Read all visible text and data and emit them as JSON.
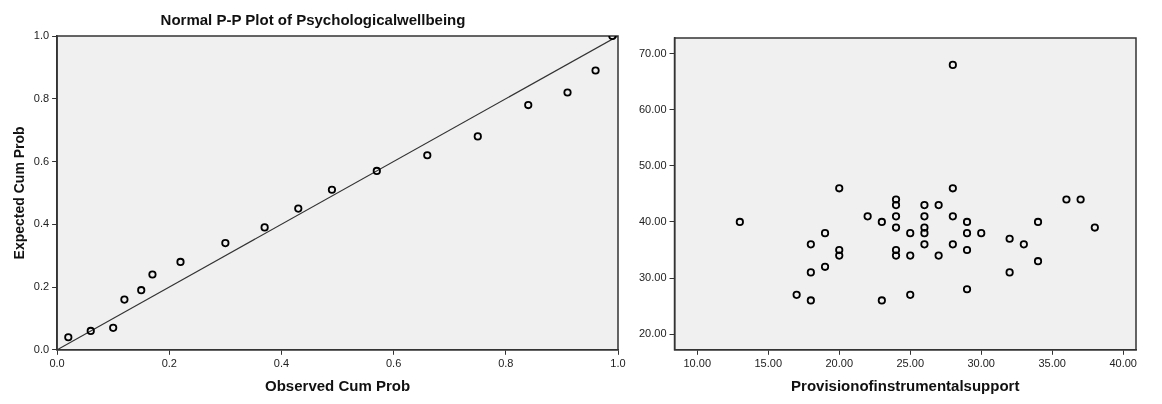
{
  "chart_data": [
    {
      "type": "scatter",
      "title": "Normal P-P Plot of Psychologicalwellbeing",
      "xlabel": "Observed Cum Prob",
      "ylabel": "Expected Cum Prob",
      "xlim": [
        0,
        1
      ],
      "ylim": [
        0,
        1
      ],
      "xticks": [
        {
          "value": 0,
          "label": "0.0"
        },
        {
          "value": 0.2,
          "label": "0.2"
        },
        {
          "value": 0.4,
          "label": "0.4"
        },
        {
          "value": 0.6,
          "label": "0.6"
        },
        {
          "value": 0.8,
          "label": "0.8"
        },
        {
          "value": 1,
          "label": "1.0"
        }
      ],
      "yticks": [
        {
          "value": 0,
          "label": "0.0"
        },
        {
          "value": 0.2,
          "label": "0.2"
        },
        {
          "value": 0.4,
          "label": "0.4"
        },
        {
          "value": 0.6,
          "label": "0.6"
        },
        {
          "value": 0.8,
          "label": "0.8"
        },
        {
          "value": 1,
          "label": "1.0"
        }
      ],
      "grid": false,
      "legend": false,
      "marker": "circle",
      "series": [
        {
          "type": "scatter",
          "color": "#000000",
          "x": [
            0.02,
            0.06,
            0.1,
            0.12,
            0.15,
            0.17,
            0.22,
            0.3,
            0.37,
            0.43,
            0.49,
            0.57,
            0.66,
            0.75,
            0.84,
            0.91,
            0.96,
            0.99
          ],
          "values": [
            0.04,
            0.06,
            0.07,
            0.16,
            0.19,
            0.24,
            0.28,
            0.34,
            0.39,
            0.45,
            0.51,
            0.57,
            0.62,
            0.68,
            0.78,
            0.82,
            0.89,
            1.0
          ]
        },
        {
          "type": "line",
          "color": "#333333",
          "marker": "none",
          "x": [
            0,
            1
          ],
          "values": [
            0,
            1
          ]
        }
      ]
    },
    {
      "type": "scatter",
      "xlabel": "Provisionofinstrumentalsupport",
      "xlim": [
        8.4,
        40.9
      ],
      "ylim": [
        17.2,
        72.8
      ],
      "xticks": [
        {
          "value": 10,
          "label": "10.00"
        },
        {
          "value": 15,
          "label": "15.00"
        },
        {
          "value": 20,
          "label": "20.00"
        },
        {
          "value": 25,
          "label": "25.00"
        },
        {
          "value": 30,
          "label": "30.00"
        },
        {
          "value": 35,
          "label": "35.00"
        },
        {
          "value": 40,
          "label": "40.00"
        }
      ],
      "yticks": [
        {
          "value": 20,
          "label": "20.00"
        },
        {
          "value": 30,
          "label": "30.00"
        },
        {
          "value": 40,
          "label": "40.00"
        },
        {
          "value": 50,
          "label": "50.00"
        },
        {
          "value": 60,
          "label": "60.00"
        },
        {
          "value": 70,
          "label": "70.00"
        }
      ],
      "grid": false,
      "legend": false,
      "marker": "circle",
      "color": "#000000",
      "x": [
        13,
        17,
        18,
        18,
        18,
        19,
        19,
        20,
        20,
        20,
        22,
        23,
        23,
        24,
        24,
        24,
        24,
        24,
        24,
        25,
        25,
        25,
        26,
        26,
        26,
        26,
        26,
        27,
        27,
        28,
        28,
        28,
        28,
        29,
        29,
        29,
        29,
        30,
        32,
        32,
        33,
        34,
        34,
        36,
        37,
        38
      ],
      "values": [
        40,
        27,
        36,
        31,
        26,
        38,
        32,
        46,
        35,
        34,
        41,
        40,
        26,
        44,
        43,
        41,
        39,
        35,
        34,
        38,
        34,
        27,
        43,
        41,
        39,
        38,
        36,
        43,
        34,
        68,
        46,
        41,
        36,
        40,
        38,
        35,
        28,
        38,
        37,
        31,
        36,
        40,
        33,
        44,
        44,
        39
      ]
    }
  ]
}
